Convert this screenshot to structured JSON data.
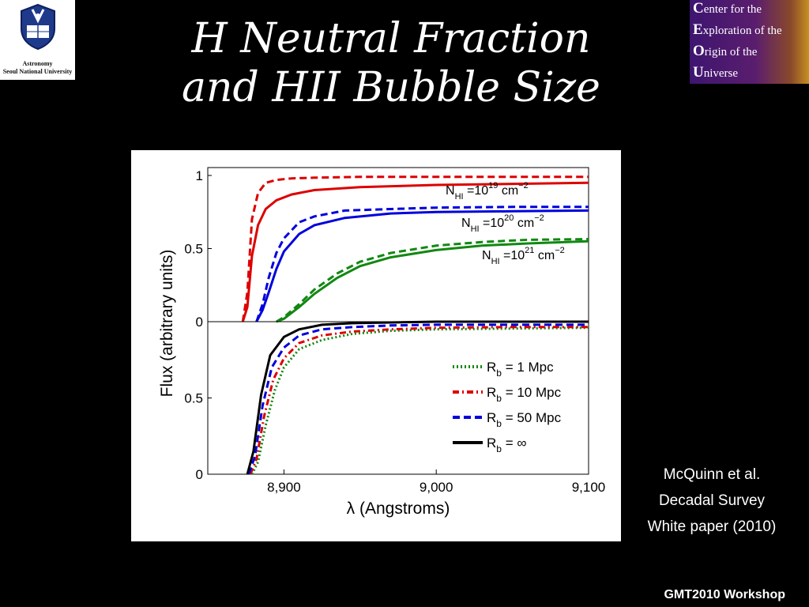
{
  "title": {
    "line1": "H Neutral Fraction",
    "line2": "and HII Bubble Size"
  },
  "logo_left": {
    "line1": "Astronomy",
    "line2": "Seoul National University"
  },
  "logo_right": {
    "lines": [
      {
        "initial": "C",
        "rest": "enter for the"
      },
      {
        "initial": "E",
        "rest": "xploration of the"
      },
      {
        "initial": "O",
        "rest": "rigin of the"
      },
      {
        "initial": "U",
        "rest": "niverse"
      }
    ]
  },
  "citation": {
    "line1": "McQuinn et al.",
    "line2": "Decadal Survey",
    "line3": "White paper (2010)"
  },
  "footer": "GMT2010 Workshop",
  "chart_data": [
    {
      "type": "line",
      "panel": "top",
      "ylabel": "Flux (arbitrary units)",
      "ylim": [
        0,
        1
      ],
      "xlim": [
        8850,
        9100
      ],
      "y_ticks": [
        "0",
        "0.5",
        "1"
      ],
      "annotations": [
        {
          "base": "N",
          "sub": "HI",
          "text": " =10",
          "sup": "19",
          "unit": " cm",
          "unitsup": "−2",
          "color": "#dd0000"
        },
        {
          "base": "N",
          "sub": "HI",
          "text": " =10",
          "sup": "20",
          "unit": " cm",
          "unitsup": "−2",
          "color": "#0000dd"
        },
        {
          "base": "N",
          "sub": "HI",
          "text": " =10",
          "sup": "21",
          "unit": " cm",
          "unitsup": "−2",
          "color": "#118811"
        }
      ],
      "series": [
        {
          "color": "#dd0000",
          "style": "solid",
          "x": [
            8873,
            8876,
            8879,
            8883,
            8888,
            8895,
            8905,
            8920,
            8950,
            9000,
            9100
          ],
          "y": [
            0,
            0.1,
            0.45,
            0.66,
            0.77,
            0.83,
            0.87,
            0.9,
            0.92,
            0.935,
            0.95
          ]
        },
        {
          "color": "#dd0000",
          "style": "dashed",
          "x": [
            8873,
            8876,
            8879,
            8883,
            8888,
            8895,
            8905,
            8920,
            8950,
            9000,
            9100
          ],
          "y": [
            0,
            0.2,
            0.7,
            0.88,
            0.95,
            0.97,
            0.98,
            0.985,
            0.99,
            0.99,
            0.99
          ]
        },
        {
          "color": "#0000dd",
          "style": "solid",
          "x": [
            8882,
            8886,
            8890,
            8895,
            8900,
            8910,
            8920,
            8940,
            8970,
            9000,
            9050,
            9100
          ],
          "y": [
            0,
            0.08,
            0.2,
            0.36,
            0.48,
            0.6,
            0.66,
            0.71,
            0.74,
            0.75,
            0.755,
            0.76
          ]
        },
        {
          "color": "#0000dd",
          "style": "dashed",
          "x": [
            8882,
            8886,
            8890,
            8895,
            8900,
            8910,
            8920,
            8940,
            8970,
            9000,
            9050,
            9100
          ],
          "y": [
            0,
            0.12,
            0.3,
            0.47,
            0.57,
            0.68,
            0.72,
            0.76,
            0.77,
            0.78,
            0.785,
            0.785
          ]
        },
        {
          "color": "#118811",
          "style": "solid",
          "x": [
            8895,
            8900,
            8910,
            8920,
            8935,
            8950,
            8970,
            9000,
            9030,
            9060,
            9100
          ],
          "y": [
            0,
            0.02,
            0.1,
            0.19,
            0.3,
            0.38,
            0.44,
            0.49,
            0.52,
            0.535,
            0.55
          ]
        },
        {
          "color": "#118811",
          "style": "dashed",
          "x": [
            8895,
            8900,
            8910,
            8920,
            8935,
            8950,
            8970,
            9000,
            9030,
            9060,
            9100
          ],
          "y": [
            0,
            0.03,
            0.12,
            0.22,
            0.33,
            0.41,
            0.47,
            0.52,
            0.545,
            0.56,
            0.565
          ]
        }
      ]
    },
    {
      "type": "line",
      "panel": "bottom",
      "xlabel": "λ (Angstroms)",
      "ylabel": "Flux (arbitrary units)",
      "ylim": [
        0,
        1
      ],
      "xlim": [
        8850,
        9100
      ],
      "x_ticks": [
        "8,900",
        "9,000",
        "9,100"
      ],
      "y_ticks": [
        "0",
        "0.5"
      ],
      "series": [
        {
          "name_base": "R",
          "name_sub": "b",
          "name_rest": " = 1 Mpc",
          "color": "#118811",
          "style": "dotted",
          "x": [
            8879,
            8883,
            8888,
            8894,
            8900,
            8910,
            8925,
            8945,
            8970,
            9000,
            9050,
            9100
          ],
          "y": [
            0,
            0.08,
            0.32,
            0.55,
            0.7,
            0.82,
            0.88,
            0.92,
            0.94,
            0.95,
            0.955,
            0.96
          ]
        },
        {
          "name_base": "R",
          "name_sub": "b",
          "name_rest": " = 10 Mpc",
          "color": "#dd0000",
          "style": "dashdot",
          "x": [
            8878,
            8882,
            8887,
            8893,
            8900,
            8910,
            8925,
            8945,
            8970,
            9000,
            9050,
            9100
          ],
          "y": [
            0,
            0.1,
            0.38,
            0.62,
            0.76,
            0.86,
            0.91,
            0.935,
            0.95,
            0.96,
            0.965,
            0.965
          ]
        },
        {
          "name_base": "R",
          "name_sub": "b",
          "name_rest": " = 50 Mpc",
          "color": "#0000dd",
          "style": "dashed",
          "x": [
            8877,
            8881,
            8886,
            8892,
            8900,
            8910,
            8925,
            8945,
            8970,
            9000,
            9050,
            9100
          ],
          "y": [
            0,
            0.12,
            0.45,
            0.7,
            0.83,
            0.91,
            0.95,
            0.965,
            0.975,
            0.98,
            0.98,
            0.98
          ]
        },
        {
          "name_base": "R",
          "name_sub": "b",
          "name_rest": " = ∞",
          "color": "#000000",
          "style": "solid",
          "x": [
            8876,
            8880,
            8885,
            8891,
            8900,
            8910,
            8925,
            8945,
            8970,
            9000,
            9050,
            9100
          ],
          "y": [
            0,
            0.15,
            0.52,
            0.78,
            0.9,
            0.95,
            0.98,
            0.99,
            0.995,
            1.0,
            1.0,
            1.0
          ]
        }
      ]
    }
  ]
}
